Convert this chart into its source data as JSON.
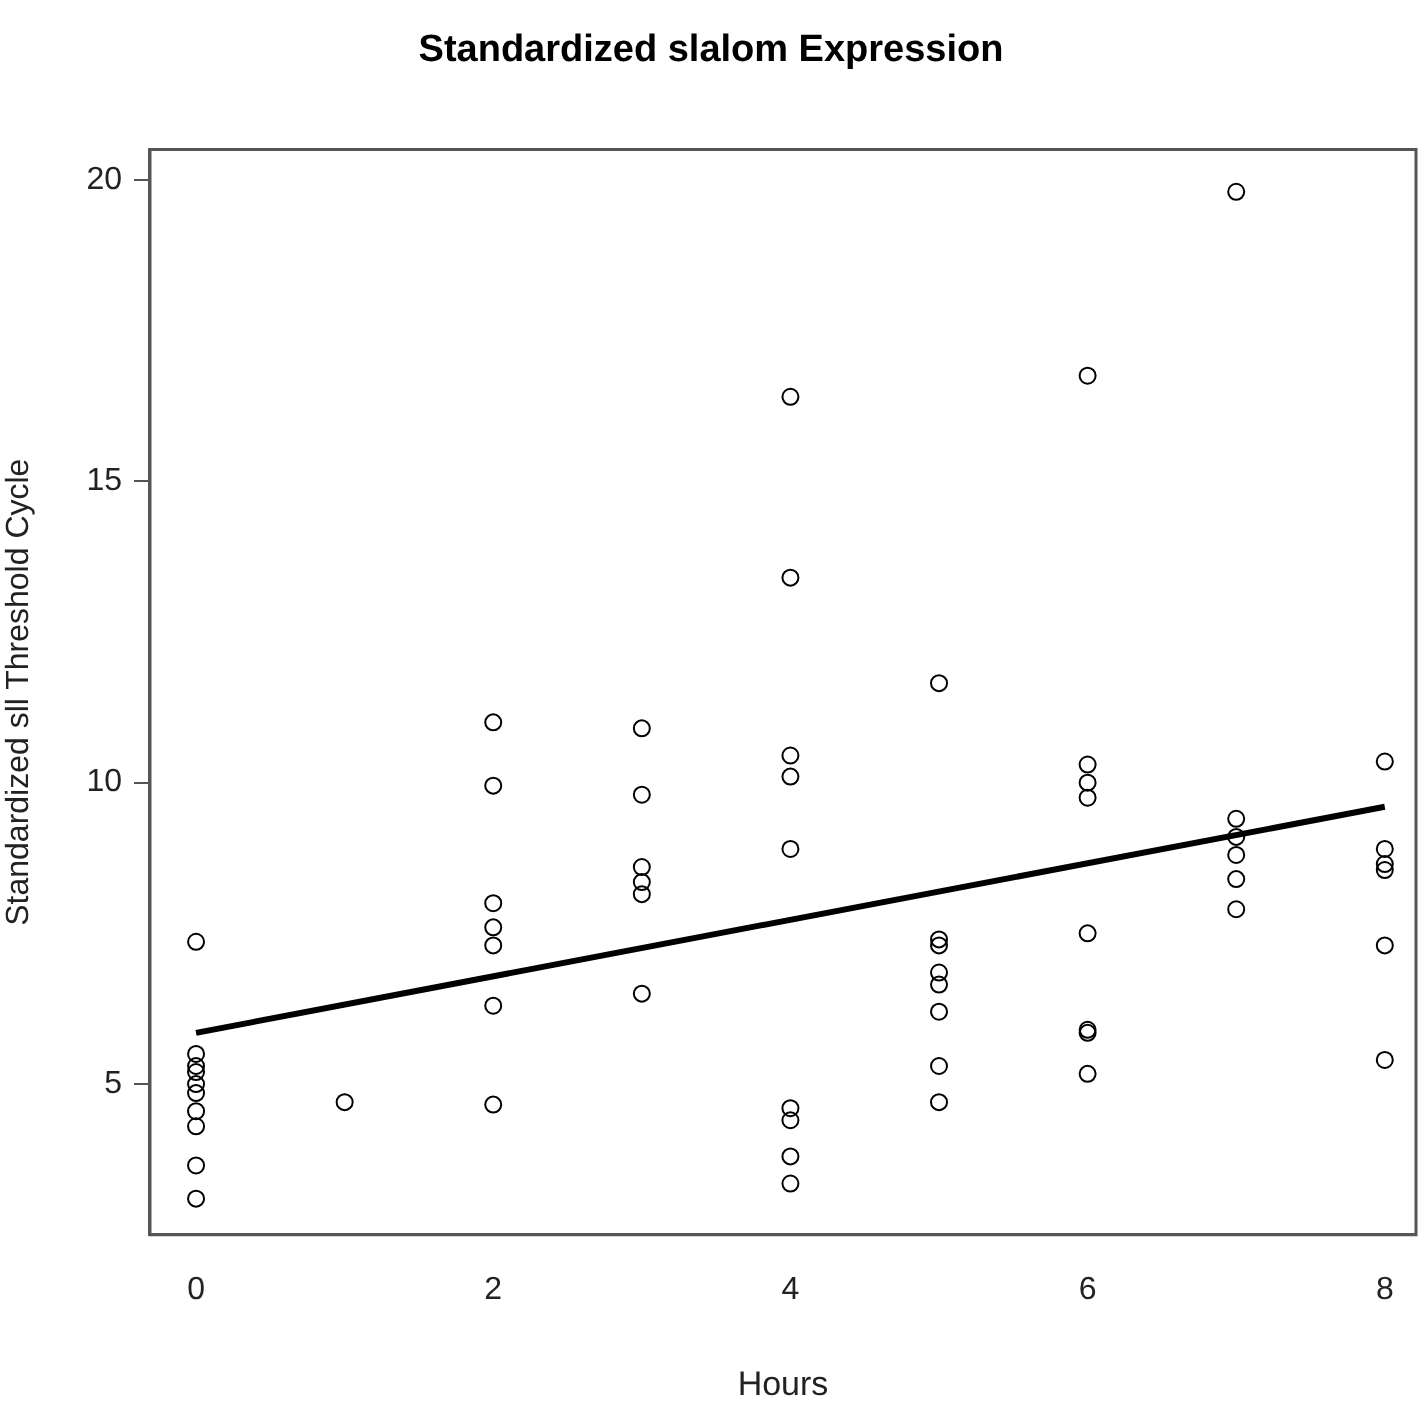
{
  "chart_data": {
    "type": "scatter",
    "title": "Standardized slalom Expression",
    "xlabel": "Hours",
    "ylabel": "Standardized sll Threshold Cycle",
    "xlim": [
      -0.31,
      8.21
    ],
    "ylim": [
      2.5,
      20.5
    ],
    "xticks": [
      0,
      2,
      4,
      6,
      8
    ],
    "yticks": [
      5,
      10,
      15,
      20
    ],
    "grid": false,
    "legend": false,
    "series": [
      {
        "type": "scatter",
        "color": "#000000",
        "marker": "circle",
        "x": [
          0,
          0,
          0,
          0,
          0,
          0,
          0,
          0,
          0,
          0,
          1,
          2,
          2,
          2,
          2,
          2,
          2,
          2,
          3,
          3,
          3,
          3,
          3,
          3,
          4,
          4,
          4,
          4,
          4,
          4,
          4,
          4,
          4,
          5,
          5,
          5,
          5,
          5,
          5,
          5,
          5,
          6,
          6,
          6,
          6,
          6,
          6,
          6,
          6,
          7,
          7,
          7,
          7,
          7,
          7,
          8,
          8,
          8,
          8,
          8,
          8
        ],
        "values": [
          7.36,
          5.5,
          5.3,
          5.2,
          5.0,
          4.85,
          4.55,
          4.3,
          3.65,
          3.1,
          4.7,
          11.0,
          9.95,
          8.0,
          7.6,
          7.3,
          6.3,
          4.66,
          10.9,
          9.8,
          8.6,
          8.35,
          8.15,
          6.5,
          16.4,
          13.4,
          10.45,
          10.1,
          8.9,
          4.6,
          4.4,
          3.8,
          3.35,
          11.65,
          7.4,
          7.3,
          6.85,
          6.65,
          6.2,
          5.3,
          4.7,
          16.75,
          10.3,
          10.0,
          9.75,
          7.5,
          5.85,
          5.9,
          5.17,
          19.8,
          9.4,
          9.1,
          8.8,
          8.4,
          7.9,
          10.35,
          8.9,
          8.65,
          8.55,
          7.3,
          5.4
        ]
      },
      {
        "type": "line",
        "color": "#000000",
        "x": [
          0,
          8
        ],
        "values": [
          5.85,
          9.6
        ]
      }
    ]
  }
}
